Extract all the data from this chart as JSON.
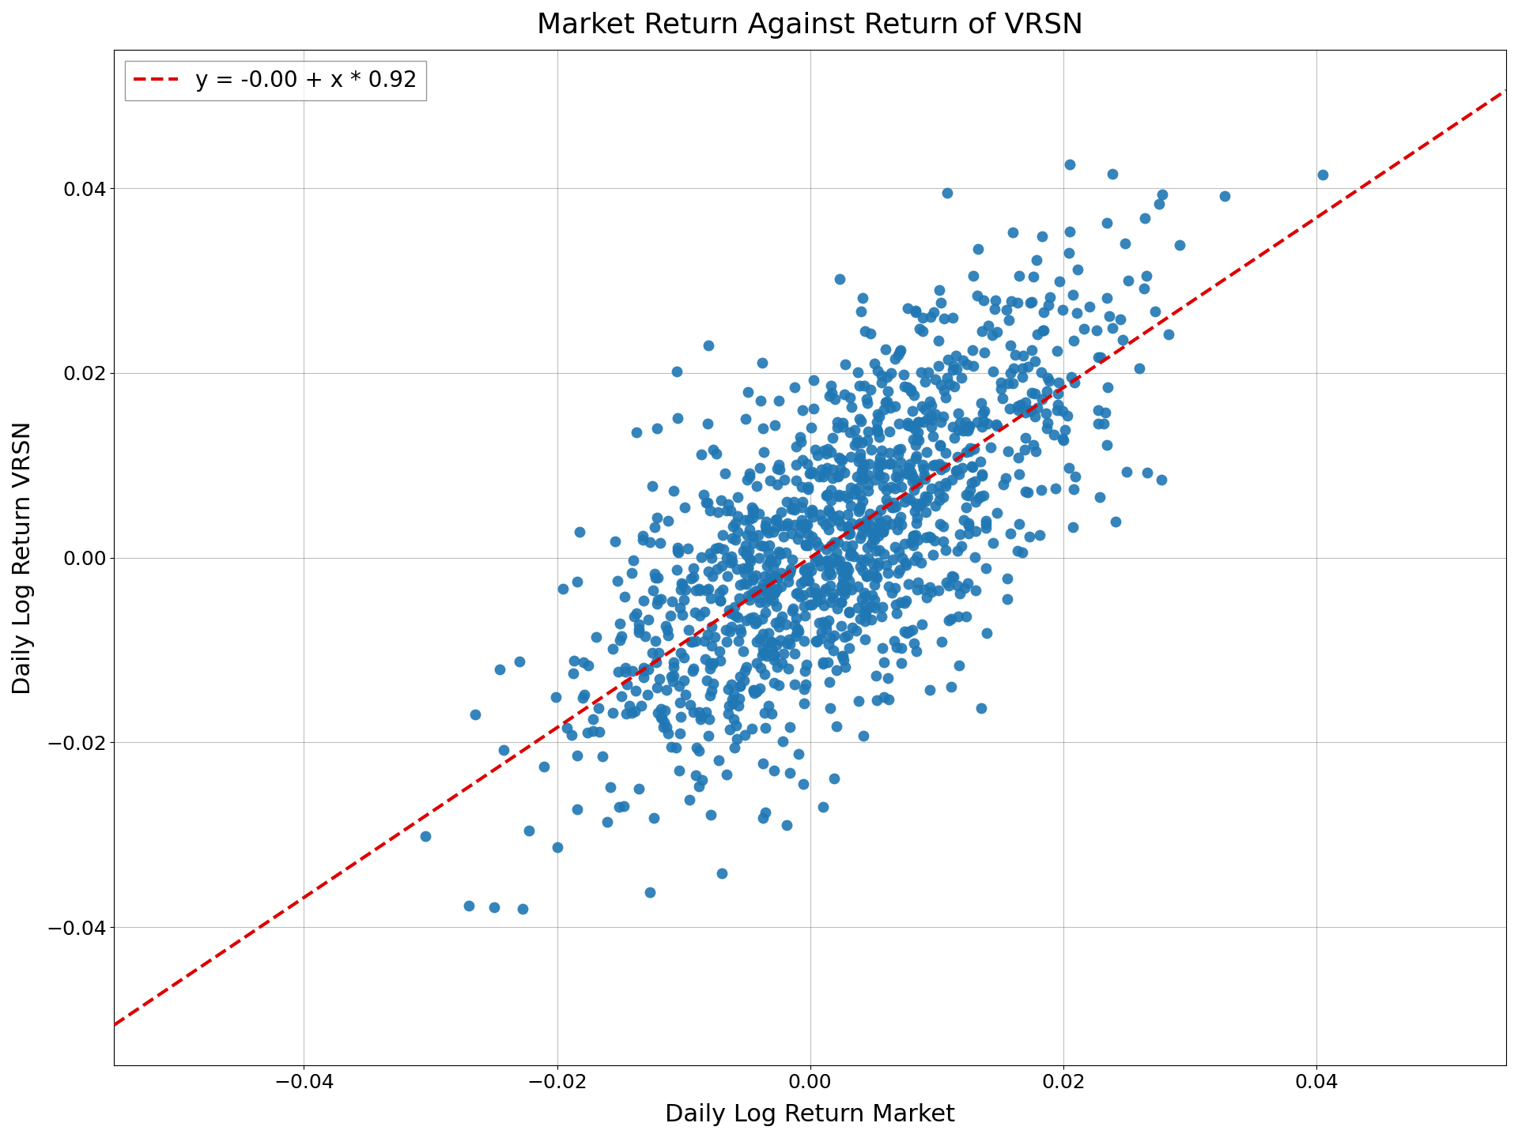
{
  "title": "Market Return Against Return of VRSN",
  "xlabel": "Daily Log Return Market",
  "ylabel": "Daily Log Return VRSN",
  "legend_label": "y = -0.00 + x * 0.92",
  "intercept": -0.0,
  "slope": 0.92,
  "xlim": [
    -0.055,
    0.055
  ],
  "ylim": [
    -0.055,
    0.055
  ],
  "scatter_color": "#1f77b4",
  "line_color": "#dd0000",
  "marker_size": 100,
  "alpha": 0.9,
  "n_points": 1260,
  "seed": 42,
  "market_std": 0.01,
  "residual_std": 0.0095,
  "title_fontsize": 26,
  "label_fontsize": 22,
  "tick_fontsize": 18,
  "legend_fontsize": 20
}
